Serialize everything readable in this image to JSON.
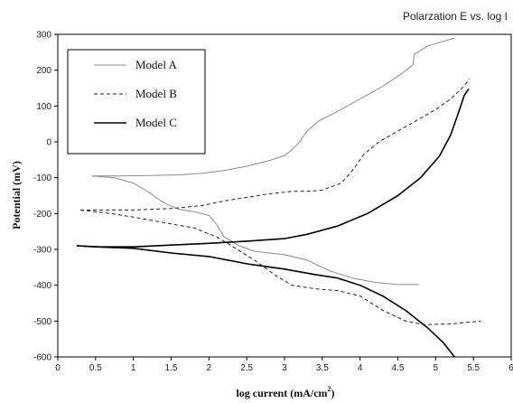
{
  "chart_data": {
    "type": "line",
    "title": "Polarzation E vs. log I",
    "xlabel": "log current (mA/cm",
    "xlabel_sup": "2",
    "xlabel_end": ")",
    "ylabel": "Potential (mV)",
    "xlim": [
      0,
      6
    ],
    "ylim": [
      -600,
      300
    ],
    "xticks": [
      "0",
      "0.5",
      "1",
      "1.5",
      "2",
      "2.5",
      "3",
      "3.5",
      "4",
      "4.5",
      "5",
      "5.5",
      "6"
    ],
    "yticks": [
      "300",
      "200",
      "100",
      "0",
      "-100",
      "-200",
      "-300",
      "-400",
      "-500",
      "-600"
    ],
    "grid": false,
    "legend_position": "top-left",
    "series": [
      {
        "name": "Model A",
        "color": "#8a8a8a",
        "dash": "solid",
        "anodic": [
          [
            0.45,
            -95
          ],
          [
            0.8,
            -95
          ],
          [
            1.2,
            -94
          ],
          [
            1.6,
            -92
          ],
          [
            1.9,
            -88
          ],
          [
            2.2,
            -80
          ],
          [
            2.5,
            -68
          ],
          [
            2.8,
            -52
          ],
          [
            3.0,
            -38
          ],
          [
            3.1,
            -22
          ],
          [
            3.2,
            0
          ],
          [
            3.3,
            30
          ],
          [
            3.45,
            58
          ],
          [
            3.7,
            85
          ],
          [
            4.0,
            120
          ],
          [
            4.3,
            155
          ],
          [
            4.55,
            190
          ],
          [
            4.7,
            215
          ],
          [
            4.72,
            245
          ],
          [
            4.9,
            268
          ],
          [
            5.1,
            280
          ],
          [
            5.25,
            290
          ]
        ],
        "cathodic": [
          [
            0.45,
            -95
          ],
          [
            0.75,
            -100
          ],
          [
            1.0,
            -115
          ],
          [
            1.2,
            -140
          ],
          [
            1.4,
            -170
          ],
          [
            1.6,
            -188
          ],
          [
            1.8,
            -195
          ],
          [
            2.0,
            -205
          ],
          [
            2.1,
            -230
          ],
          [
            2.2,
            -265
          ],
          [
            2.4,
            -290
          ],
          [
            2.6,
            -305
          ],
          [
            3.0,
            -315
          ],
          [
            3.3,
            -330
          ],
          [
            3.6,
            -360
          ],
          [
            3.9,
            -380
          ],
          [
            4.2,
            -392
          ],
          [
            4.5,
            -398
          ],
          [
            4.78,
            -398
          ]
        ]
      },
      {
        "name": "Model B",
        "color": "#222222",
        "dash": "4,3",
        "anodic": [
          [
            0.3,
            -190
          ],
          [
            0.6,
            -190
          ],
          [
            1.0,
            -190
          ],
          [
            1.5,
            -186
          ],
          [
            1.9,
            -178
          ],
          [
            2.2,
            -165
          ],
          [
            2.5,
            -155
          ],
          [
            2.8,
            -145
          ],
          [
            3.1,
            -138
          ],
          [
            3.3,
            -138
          ],
          [
            3.5,
            -135
          ],
          [
            3.75,
            -115
          ],
          [
            3.88,
            -85
          ],
          [
            3.95,
            -65
          ],
          [
            4.05,
            -35
          ],
          [
            4.25,
            0
          ],
          [
            4.5,
            30
          ],
          [
            4.75,
            60
          ],
          [
            5.0,
            90
          ],
          [
            5.2,
            120
          ],
          [
            5.35,
            150
          ],
          [
            5.45,
            175
          ]
        ],
        "cathodic": [
          [
            0.3,
            -190
          ],
          [
            0.7,
            -200
          ],
          [
            1.0,
            -210
          ],
          [
            1.4,
            -225
          ],
          [
            1.8,
            -240
          ],
          [
            2.1,
            -265
          ],
          [
            2.3,
            -290
          ],
          [
            2.6,
            -330
          ],
          [
            2.9,
            -375
          ],
          [
            3.1,
            -400
          ],
          [
            3.4,
            -410
          ],
          [
            3.7,
            -415
          ],
          [
            4.0,
            -430
          ],
          [
            4.3,
            -470
          ],
          [
            4.6,
            -500
          ],
          [
            4.85,
            -510
          ],
          [
            5.2,
            -508
          ],
          [
            5.6,
            -500
          ]
        ]
      },
      {
        "name": "Model C",
        "color": "#000000",
        "dash": "solid",
        "anodic": [
          [
            0.25,
            -290
          ],
          [
            0.55,
            -293
          ],
          [
            1.0,
            -293
          ],
          [
            1.5,
            -288
          ],
          [
            2.0,
            -283
          ],
          [
            2.5,
            -277
          ],
          [
            3.0,
            -270
          ],
          [
            3.3,
            -258
          ],
          [
            3.7,
            -235
          ],
          [
            4.1,
            -200
          ],
          [
            4.5,
            -150
          ],
          [
            4.8,
            -100
          ],
          [
            5.05,
            -40
          ],
          [
            5.2,
            20
          ],
          [
            5.3,
            80
          ],
          [
            5.38,
            130
          ],
          [
            5.44,
            148
          ]
        ],
        "cathodic": [
          [
            0.25,
            -290
          ],
          [
            0.5,
            -293
          ],
          [
            1.0,
            -297
          ],
          [
            1.5,
            -310
          ],
          [
            2.0,
            -320
          ],
          [
            2.5,
            -340
          ],
          [
            3.0,
            -355
          ],
          [
            3.4,
            -370
          ],
          [
            3.7,
            -380
          ],
          [
            4.0,
            -400
          ],
          [
            4.3,
            -430
          ],
          [
            4.6,
            -470
          ],
          [
            4.9,
            -520
          ],
          [
            5.1,
            -560
          ],
          [
            5.25,
            -600
          ]
        ]
      }
    ]
  }
}
